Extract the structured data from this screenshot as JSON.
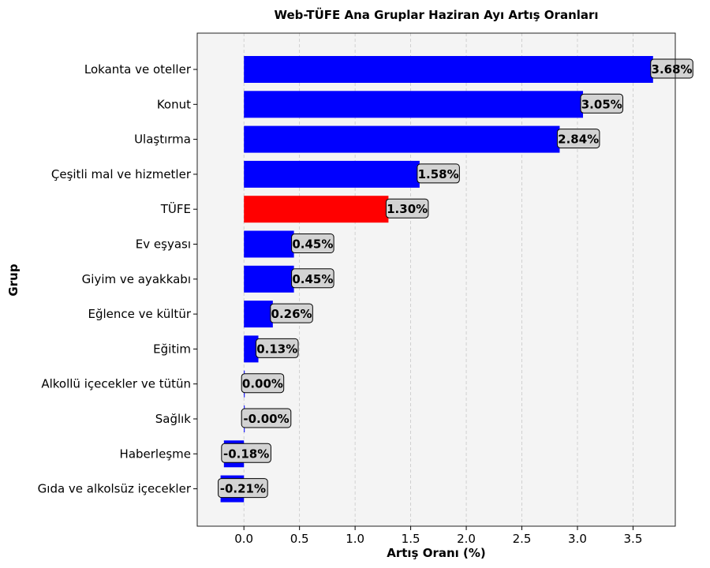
{
  "chart_data": {
    "type": "bar",
    "orientation": "horizontal",
    "title": "Web-TÜFE Ana Gruplar Haziran Ayı Artış Oranları",
    "xlabel": "Artış Oranı (%)",
    "ylabel": "Grup",
    "xlim": [
      -0.42,
      3.88
    ],
    "xticks": [
      0.0,
      0.5,
      1.0,
      1.5,
      2.0,
      2.5,
      3.0,
      3.5
    ],
    "xtick_labels": [
      "0.0",
      "0.5",
      "1.0",
      "1.5",
      "2.0",
      "2.5",
      "3.0",
      "3.5"
    ],
    "grid": true,
    "plot_background": "#f4f4f4",
    "label_box_color": "#d3d3d3",
    "categories": [
      "Lokanta ve oteller",
      "Konut",
      "Ulaştırma",
      "Çeşitli mal ve hizmetler",
      "TÜFE",
      "Ev eşyası",
      "Giyim ve ayakkabı",
      "Eğlence ve kültür",
      "Eğitim",
      "Alkollü içecekler ve tütün",
      "Sağlık",
      "Haberleşme",
      "Gıda ve alkolsüz içecekler"
    ],
    "values": [
      3.68,
      3.05,
      2.84,
      1.58,
      1.3,
      0.45,
      0.45,
      0.26,
      0.13,
      0.0,
      -0.0,
      -0.18,
      -0.21
    ],
    "value_labels": [
      "3.68%",
      "3.05%",
      "2.84%",
      "1.58%",
      "1.30%",
      "0.45%",
      "0.45%",
      "0.26%",
      "0.13%",
      "0.00%",
      "-0.00%",
      "-0.18%",
      "-0.21%"
    ],
    "colors": [
      "#0000ff",
      "#0000ff",
      "#0000ff",
      "#0000ff",
      "#ff0000",
      "#0000ff",
      "#0000ff",
      "#0000ff",
      "#0000ff",
      "#0000ff",
      "#0000ff",
      "#0000ff",
      "#0000ff"
    ]
  }
}
